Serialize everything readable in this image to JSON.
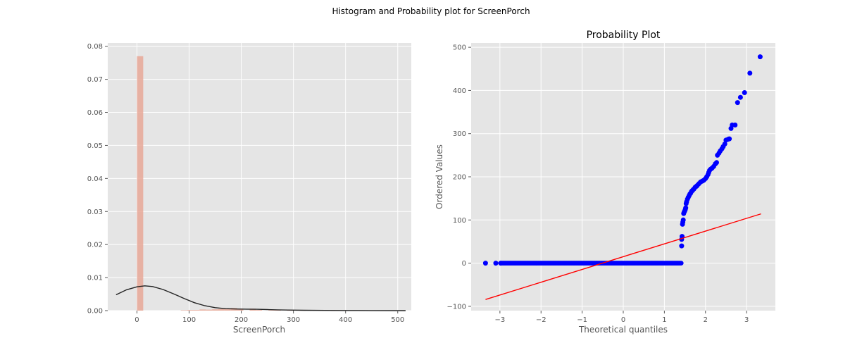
{
  "figure": {
    "suptitle": "Histogram and Probability plot for ScreenPorch"
  },
  "chart_data": [
    {
      "type": "bar",
      "title": "",
      "xlabel": "ScreenPorch",
      "ylabel": "",
      "xlim": [
        -56,
        526
      ],
      "ylim": [
        0,
        0.081
      ],
      "xticks": [
        0,
        100,
        200,
        300,
        400,
        500
      ],
      "xtick_labels": [
        "0",
        "100",
        "200",
        "300",
        "400",
        "500"
      ],
      "yticks": [
        0,
        0.01,
        0.02,
        0.03,
        0.04,
        0.05,
        0.06,
        0.07,
        0.08
      ],
      "ytick_labels": [
        "0.00",
        "0.01",
        "0.02",
        "0.03",
        "0.04",
        "0.05",
        "0.06",
        "0.07",
        "0.08"
      ],
      "grid": true,
      "bar_color": "#e8a898",
      "kde_color": "#222222",
      "bins": [
        {
          "x0": 0,
          "x1": 12,
          "value": 0.077
        },
        {
          "x0": 84,
          "x1": 96,
          "value": 0.00012
        },
        {
          "x0": 96,
          "x1": 108,
          "value": 0.0002
        },
        {
          "x0": 108,
          "x1": 120,
          "value": 0.0002
        },
        {
          "x0": 120,
          "x1": 132,
          "value": 0.00035
        },
        {
          "x0": 132,
          "x1": 144,
          "value": 0.0003
        },
        {
          "x0": 144,
          "x1": 156,
          "value": 0.0004
        },
        {
          "x0": 156,
          "x1": 168,
          "value": 0.0005
        },
        {
          "x0": 168,
          "x1": 180,
          "value": 0.0007
        },
        {
          "x0": 180,
          "x1": 192,
          "value": 0.0008
        },
        {
          "x0": 192,
          "x1": 204,
          "value": 0.0006
        },
        {
          "x0": 216,
          "x1": 228,
          "value": 0.0006
        },
        {
          "x0": 228,
          "x1": 240,
          "value": 0.0002
        },
        {
          "x0": 252,
          "x1": 264,
          "value": 0.00015
        },
        {
          "x0": 264,
          "x1": 276,
          "value": 0.00012
        },
        {
          "x0": 288,
          "x1": 300,
          "value": 0.0001
        },
        {
          "x0": 312,
          "x1": 324,
          "value": 0.0001
        },
        {
          "x0": 372,
          "x1": 384,
          "value": 5e-05
        },
        {
          "x0": 384,
          "x1": 396,
          "value": 5e-05
        },
        {
          "x0": 432,
          "x1": 444,
          "value": 5e-05
        },
        {
          "x0": 468,
          "x1": 480,
          "value": 5e-05
        }
      ],
      "kde": {
        "x": [
          -40,
          -20,
          0,
          15,
          30,
          50,
          70,
          90,
          110,
          130,
          150,
          170,
          190,
          210,
          230,
          250,
          270,
          290,
          320,
          360,
          400,
          450,
          515
        ],
        "y": [
          0.0048,
          0.0063,
          0.0072,
          0.0075,
          0.0073,
          0.0064,
          0.0051,
          0.0037,
          0.0024,
          0.0015,
          0.0009,
          0.0006,
          0.0005,
          0.00045,
          0.0004,
          0.00032,
          0.00024,
          0.00018,
          0.0001,
          6e-05,
          4e-05,
          2e-05,
          0.0
        ]
      }
    },
    {
      "type": "scatter",
      "title": "Probability Plot",
      "xlabel": "Theoretical quantiles",
      "ylabel": "Ordered Values",
      "xlim": [
        -3.7,
        3.7
      ],
      "ylim": [
        -110,
        510
      ],
      "xticks": [
        -3,
        -2,
        -1,
        0,
        1,
        2,
        3
      ],
      "xtick_labels": [
        "−3",
        "−2",
        "−1",
        "0",
        "1",
        "2",
        "3"
      ],
      "yticks": [
        -100,
        0,
        100,
        200,
        300,
        400,
        500
      ],
      "ytick_labels": [
        "−100",
        "0",
        "100",
        "200",
        "300",
        "400",
        "500"
      ],
      "grid": true,
      "point_color": "#0000ff",
      "line_color": "#ff0000",
      "fit_line": {
        "slope": 29.6,
        "intercept": 15.0,
        "x_range": [
          -3.35,
          3.35
        ]
      },
      "zero_run": {
        "x_start": -2.95,
        "x_end": 1.42,
        "y": 0,
        "step": 0.02
      },
      "points": [
        [
          -3.35,
          0
        ],
        [
          -3.1,
          0
        ],
        [
          -2.98,
          0
        ],
        [
          1.42,
          40
        ],
        [
          1.42,
          55
        ],
        [
          1.43,
          62
        ],
        [
          1.44,
          90
        ],
        [
          1.45,
          95
        ],
        [
          1.46,
          100
        ],
        [
          1.47,
          115
        ],
        [
          1.48,
          118
        ],
        [
          1.49,
          120
        ],
        [
          1.5,
          122
        ],
        [
          1.51,
          125
        ],
        [
          1.52,
          128
        ],
        [
          1.53,
          138
        ],
        [
          1.54,
          142
        ],
        [
          1.56,
          148
        ],
        [
          1.58,
          152
        ],
        [
          1.6,
          156
        ],
        [
          1.62,
          160
        ],
        [
          1.64,
          162
        ],
        [
          1.66,
          166
        ],
        [
          1.68,
          168
        ],
        [
          1.7,
          170
        ],
        [
          1.72,
          172
        ],
        [
          1.75,
          176
        ],
        [
          1.78,
          178
        ],
        [
          1.8,
          180
        ],
        [
          1.84,
          184
        ],
        [
          1.88,
          188
        ],
        [
          1.92,
          190
        ],
        [
          1.96,
          192
        ],
        [
          2.0,
          196
        ],
        [
          2.03,
          200
        ],
        [
          2.06,
          205
        ],
        [
          2.08,
          210
        ],
        [
          2.1,
          215
        ],
        [
          2.13,
          218
        ],
        [
          2.16,
          220
        ],
        [
          2.2,
          224
        ],
        [
          2.24,
          230
        ],
        [
          2.27,
          233
        ],
        [
          2.29,
          250
        ],
        [
          2.33,
          255
        ],
        [
          2.36,
          260
        ],
        [
          2.4,
          265
        ],
        [
          2.43,
          270
        ],
        [
          2.47,
          276
        ],
        [
          2.5,
          285
        ],
        [
          2.55,
          287
        ],
        [
          2.58,
          288
        ],
        [
          2.62,
          312
        ],
        [
          2.65,
          320
        ],
        [
          2.72,
          320
        ],
        [
          2.78,
          372
        ],
        [
          2.85,
          384
        ],
        [
          2.95,
          395
        ],
        [
          3.08,
          440
        ],
        [
          3.33,
          478
        ]
      ]
    }
  ]
}
